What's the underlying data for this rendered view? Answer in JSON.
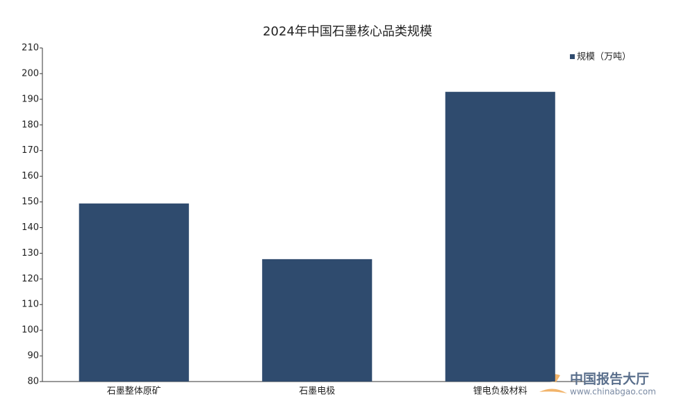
{
  "chart_data": {
    "type": "bar",
    "title": "2024年中国石墨核心品类规模",
    "categories": [
      "石墨整体原矿",
      "石墨电极",
      "锂电负极材料"
    ],
    "series": [
      {
        "name": "规模（万吨）",
        "color": "#2f4b6e",
        "values": [
          149.4,
          127.7,
          192.9
        ]
      }
    ],
    "ylim": [
      80,
      210
    ],
    "yticks": [
      80,
      90,
      100,
      110,
      120,
      130,
      140,
      150,
      160,
      170,
      180,
      190,
      200,
      210
    ],
    "grid": false,
    "legend": "top-right",
    "watermark": [
      "中国报告大厅",
      "www.chinabgao.com"
    ]
  }
}
